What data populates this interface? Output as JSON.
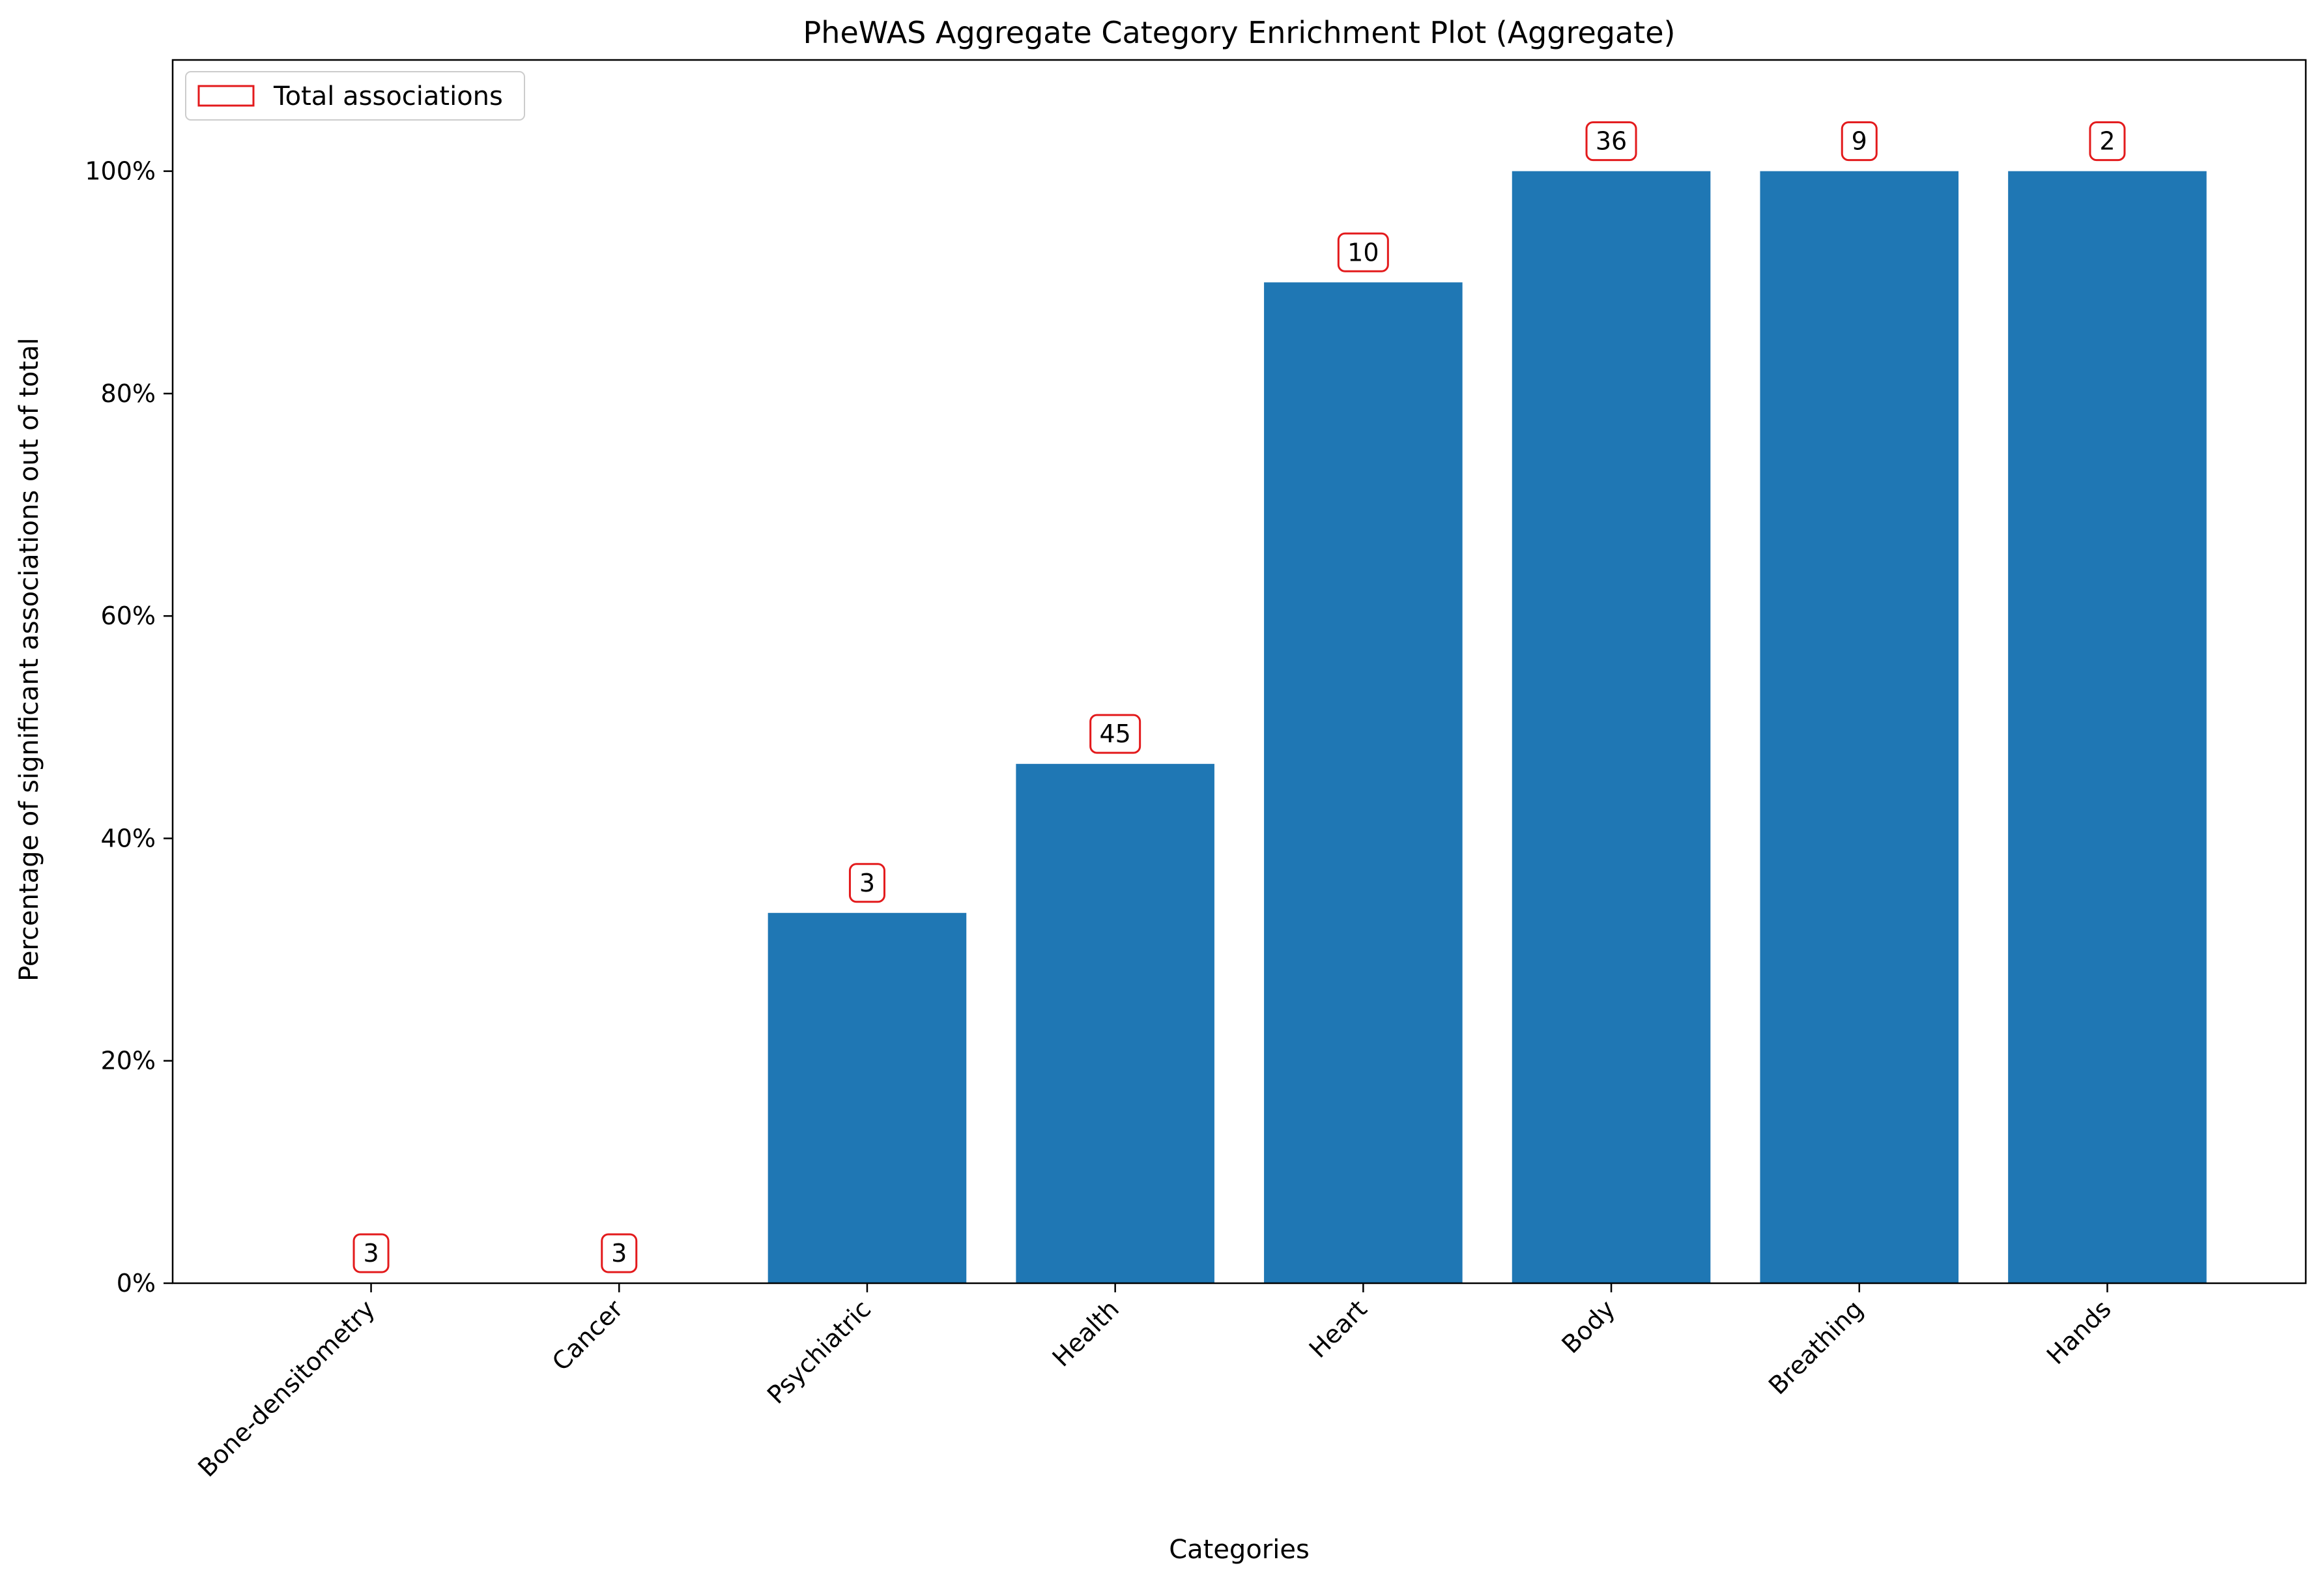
{
  "chart_data": {
    "type": "bar",
    "title": "PheWAS Aggregate Category Enrichment Plot (Aggregate)",
    "xlabel": "Categories",
    "ylabel": "Percentage of significant associations out of total",
    "categories": [
      "Bone-densitometry",
      "Cancer",
      "Psychiatric",
      "Health",
      "Heart",
      "Body",
      "Breathing",
      "Hands"
    ],
    "values": [
      0,
      0,
      33.3,
      46.7,
      90.0,
      100,
      100,
      100
    ],
    "counts": [
      "3",
      "3",
      "3",
      "45",
      "10",
      "36",
      "9",
      "2"
    ],
    "ylim": [
      0,
      110
    ],
    "yticks": [
      0,
      20,
      40,
      60,
      80,
      100
    ],
    "ytick_labels": [
      "0%",
      "20%",
      "40%",
      "60%",
      "80%",
      "100%"
    ],
    "legend": {
      "label": "Total associations",
      "placement": "top-left"
    },
    "grid": false,
    "bar_color": "#1f77b4",
    "annotation_color": "#e31a1c"
  }
}
